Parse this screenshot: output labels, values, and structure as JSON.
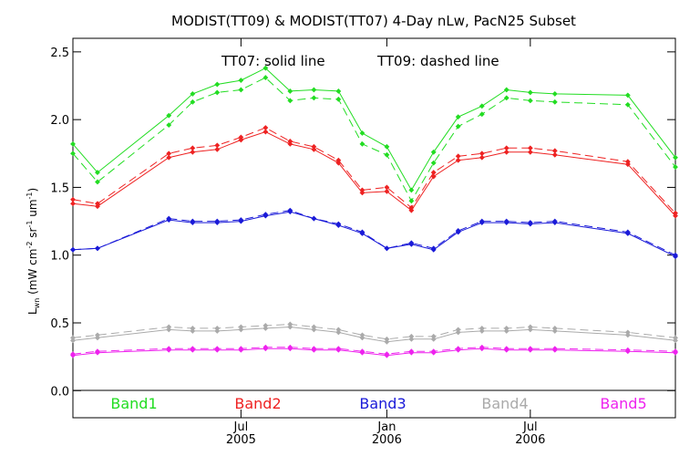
{
  "chart_data": {
    "type": "line",
    "title": "MODIST(TT09) & MODIST(TT07) 4-Day nLw, PacN25 Subset",
    "annotation_solid": "TT07: solid line",
    "annotation_dashed": "TT09: dashed line",
    "ylabel": "L",
    "ylabel_sub": "wn",
    "ylabel_units_1": " (mW cm",
    "ylabel_units_2": " sr",
    "ylabel_units_3": " um",
    "ylabel_units_4": ")",
    "ylabel_sup": "-2",
    "ylabel_sup2": "-1",
    "ylabel_sup3": "-1",
    "ylim": [
      -0.2,
      2.6
    ],
    "yticks": [
      "0.0",
      "0.5",
      "1.0",
      "1.5",
      "2.0",
      "2.5"
    ],
    "ytick_values": [
      0.0,
      0.5,
      1.0,
      1.5,
      2.0,
      2.5
    ],
    "xlim": [
      "2004-12-01",
      "2006-12-31"
    ],
    "xtick_months": [
      "Jul",
      "Jan",
      "Jul"
    ],
    "xtick_years": [
      "2005",
      "2006",
      "2006"
    ],
    "xtick_dates": [
      "2005-07-01",
      "2006-01-01",
      "2006-07-01"
    ],
    "x": [
      "2004-12-01",
      "2005-01-01",
      "2005-04-01",
      "2005-05-01",
      "2005-06-01",
      "2005-07-01",
      "2005-08-01",
      "2005-09-01",
      "2005-10-01",
      "2005-11-01",
      "2005-12-01",
      "2006-01-01",
      "2006-02-01",
      "2006-03-01",
      "2006-04-01",
      "2006-05-01",
      "2006-06-01",
      "2006-07-01",
      "2006-08-01",
      "2006-11-01",
      "2006-12-31"
    ],
    "series": [
      {
        "name": "Band1",
        "color": "#22dd22",
        "style": "solid",
        "values": [
          1.82,
          1.61,
          2.03,
          2.19,
          2.26,
          2.29,
          2.38,
          2.21,
          2.22,
          2.21,
          1.9,
          1.8,
          1.48,
          1.76,
          2.02,
          2.1,
          2.22,
          2.2,
          2.19,
          2.18,
          1.72
        ]
      },
      {
        "name": "Band1",
        "color": "#22dd22",
        "style": "dashed",
        "values": [
          1.75,
          1.54,
          1.96,
          2.13,
          2.2,
          2.22,
          2.31,
          2.14,
          2.16,
          2.15,
          1.82,
          1.74,
          1.4,
          1.68,
          1.95,
          2.04,
          2.16,
          2.14,
          2.13,
          2.11,
          1.65
        ]
      },
      {
        "name": "Band2",
        "color": "#ee2222",
        "style": "solid",
        "values": [
          1.38,
          1.36,
          1.72,
          1.76,
          1.78,
          1.85,
          1.91,
          1.82,
          1.78,
          1.68,
          1.46,
          1.47,
          1.33,
          1.58,
          1.7,
          1.72,
          1.76,
          1.76,
          1.74,
          1.67,
          1.29
        ]
      },
      {
        "name": "Band2",
        "color": "#ee2222",
        "style": "dashed",
        "values": [
          1.41,
          1.38,
          1.75,
          1.79,
          1.81,
          1.87,
          1.94,
          1.84,
          1.8,
          1.7,
          1.48,
          1.5,
          1.35,
          1.61,
          1.73,
          1.75,
          1.79,
          1.79,
          1.77,
          1.69,
          1.31
        ]
      },
      {
        "name": "Band3",
        "color": "#1a1ad8",
        "style": "solid",
        "values": [
          1.04,
          1.05,
          1.26,
          1.24,
          1.24,
          1.25,
          1.29,
          1.32,
          1.27,
          1.22,
          1.16,
          1.05,
          1.08,
          1.04,
          1.17,
          1.24,
          1.24,
          1.23,
          1.24,
          1.16,
          0.99
        ]
      },
      {
        "name": "Band3",
        "color": "#1a1ad8",
        "style": "dashed",
        "values": [
          1.04,
          1.05,
          1.27,
          1.25,
          1.25,
          1.26,
          1.3,
          1.33,
          1.27,
          1.23,
          1.17,
          1.05,
          1.09,
          1.05,
          1.18,
          1.25,
          1.25,
          1.24,
          1.25,
          1.17,
          1.0
        ]
      },
      {
        "name": "Band4",
        "color": "#aaaaaa",
        "style": "solid",
        "values": [
          0.37,
          0.39,
          0.45,
          0.44,
          0.44,
          0.45,
          0.46,
          0.47,
          0.45,
          0.43,
          0.39,
          0.36,
          0.38,
          0.38,
          0.43,
          0.44,
          0.44,
          0.45,
          0.44,
          0.41,
          0.37
        ]
      },
      {
        "name": "Band4",
        "color": "#aaaaaa",
        "style": "dashed",
        "values": [
          0.39,
          0.41,
          0.47,
          0.46,
          0.46,
          0.47,
          0.48,
          0.49,
          0.47,
          0.45,
          0.41,
          0.38,
          0.4,
          0.4,
          0.45,
          0.46,
          0.46,
          0.47,
          0.46,
          0.43,
          0.39
        ]
      },
      {
        "name": "Band5",
        "color": "#ee22ee",
        "style": "solid",
        "values": [
          0.26,
          0.28,
          0.3,
          0.3,
          0.3,
          0.3,
          0.31,
          0.31,
          0.3,
          0.3,
          0.28,
          0.26,
          0.28,
          0.28,
          0.3,
          0.31,
          0.3,
          0.3,
          0.3,
          0.29,
          0.28
        ]
      },
      {
        "name": "Band5",
        "color": "#ee22ee",
        "style": "dashed",
        "values": [
          0.27,
          0.29,
          0.31,
          0.31,
          0.31,
          0.31,
          0.32,
          0.32,
          0.31,
          0.31,
          0.29,
          0.27,
          0.29,
          0.29,
          0.31,
          0.32,
          0.31,
          0.31,
          0.31,
          0.3,
          0.29
        ]
      }
    ],
    "legend": [
      {
        "label": "Band1",
        "color": "#22dd22"
      },
      {
        "label": "Band2",
        "color": "#ee2222"
      },
      {
        "label": "Band3",
        "color": "#1a1ad8"
      },
      {
        "label": "Band4",
        "color": "#aaaaaa"
      },
      {
        "label": "Band5",
        "color": "#ee22ee"
      }
    ],
    "legend_placement": "bottom inside plot",
    "grid": false
  }
}
